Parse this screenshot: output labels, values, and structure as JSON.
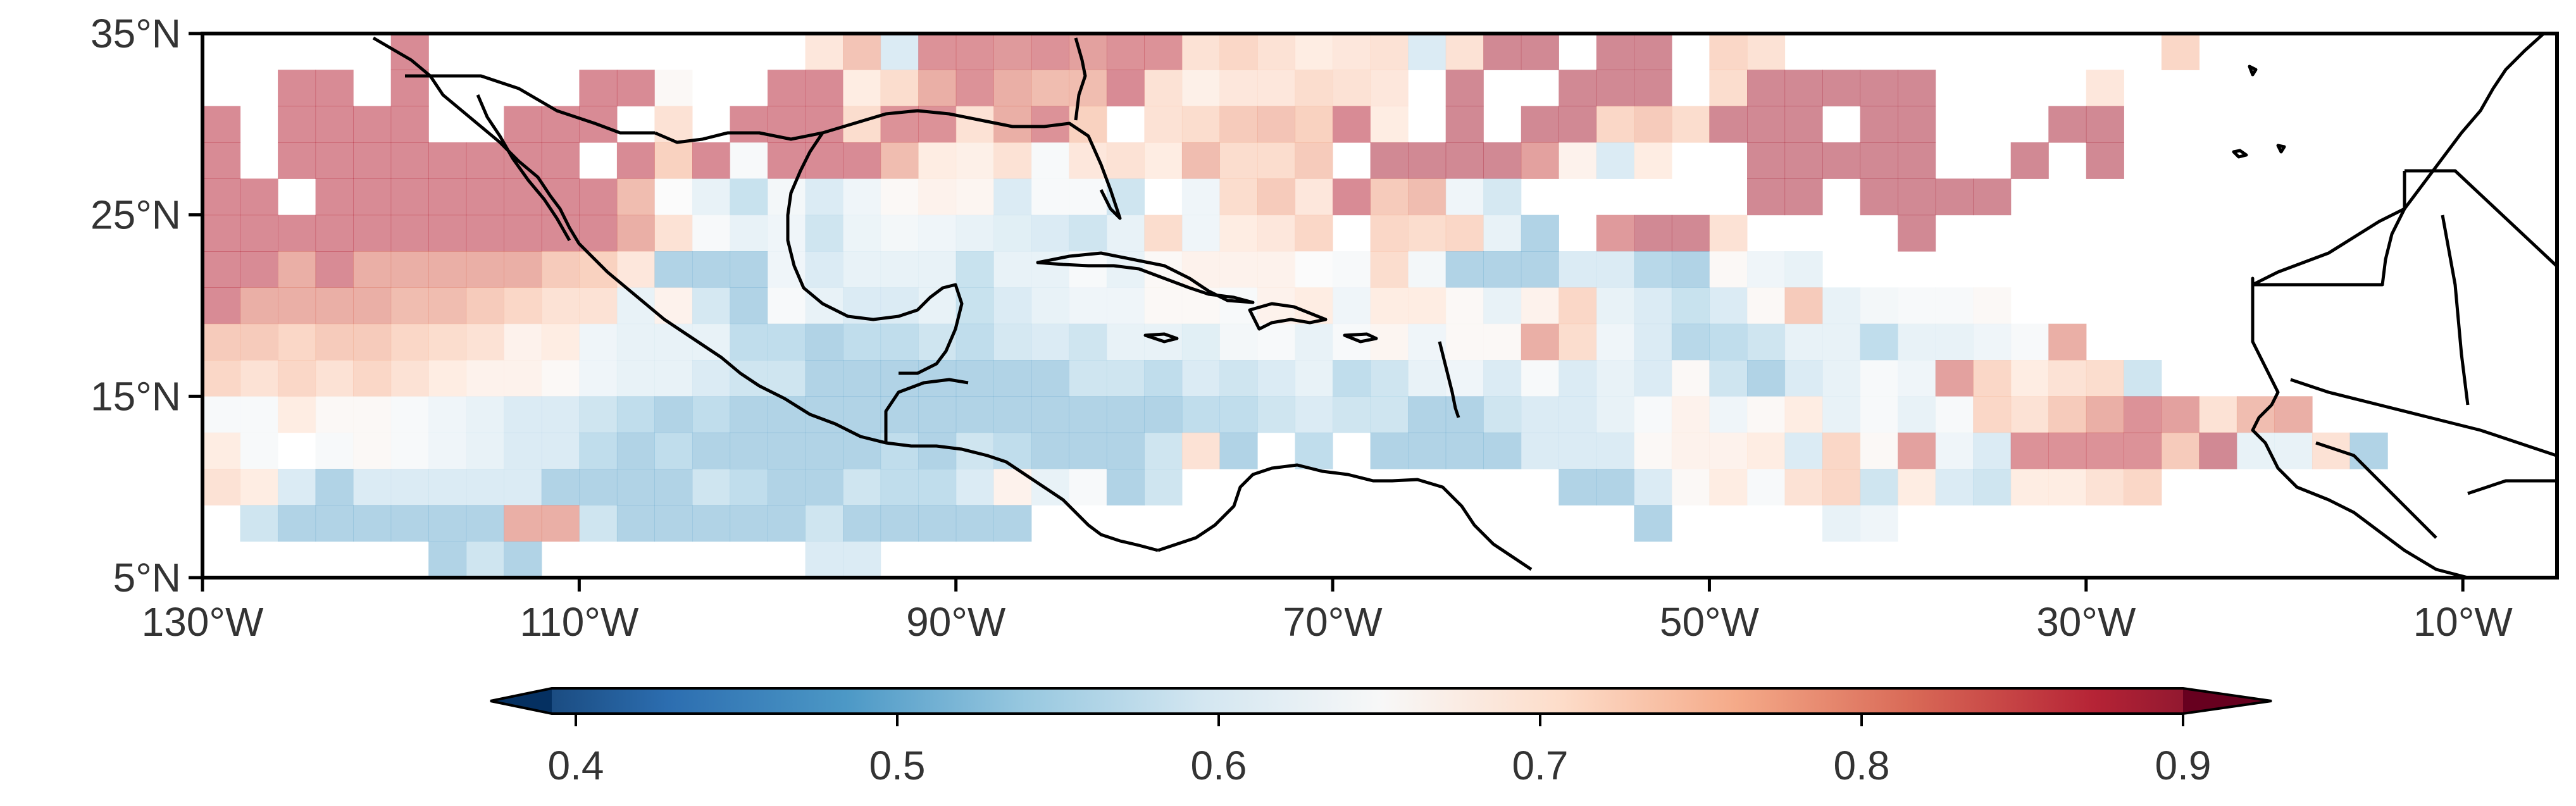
{
  "chart_data": {
    "type": "heatmap",
    "title": "",
    "map": {
      "projection": "PlateCarree",
      "lon_range": [
        -130,
        -5
      ],
      "lat_range": [
        5,
        35
      ],
      "cell_size_deg": 2,
      "x_tick_labels": [
        "130°W",
        "110°W",
        "90°W",
        "70°W",
        "50°W",
        "30°W",
        "10°W"
      ],
      "x_tick_values": [
        -130,
        -110,
        -90,
        -70,
        -50,
        -30,
        -10
      ],
      "y_tick_labels": [
        "35°N",
        "25°N",
        "15°N",
        "5°N"
      ],
      "y_tick_values": [
        35,
        25,
        15,
        5
      ],
      "features": [
        "coastlines",
        "country borders"
      ]
    },
    "colorbar": {
      "colormap": "RdBu_r",
      "vmin": 0.4,
      "vmax": 0.9,
      "extend": "both",
      "orientation": "horizontal",
      "alpha": 0.5,
      "tick_labels": [
        "0.4",
        "0.5",
        "0.6",
        "0.7",
        "0.8",
        "0.9"
      ],
      "tick_values": [
        0.4,
        0.5,
        0.6,
        0.7,
        0.8,
        0.9
      ]
    },
    "lons": [
      -129,
      -127,
      -125,
      -123,
      -121,
      -119,
      -117,
      -115,
      -113,
      -111,
      -109,
      -107,
      -105,
      -103,
      -101,
      -99,
      -97,
      -95,
      -93,
      -91,
      -89,
      -87,
      -85,
      -83,
      -81,
      -79,
      -77,
      -75,
      -73,
      -71,
      -69,
      -67,
      -65,
      -63,
      -61,
      -59,
      -57,
      -55,
      -53,
      -51,
      -49,
      -47,
      -45,
      -43,
      -41,
      -39,
      -37,
      -35,
      -33,
      -31,
      -29,
      -27,
      -25,
      -23,
      -21,
      -19,
      -17,
      -15,
      -13,
      -11,
      -9,
      -7
    ],
    "lats": [
      34,
      32,
      30,
      28,
      26,
      24,
      22,
      20,
      18,
      16,
      14,
      12,
      10,
      8,
      6
    ],
    "cells": [
      "-----------------------cc.c6edeeeeeeeecr6cc.cc---cd.cc.f.ccccc.cc.....f.......ccc.......",
      "------cccc-----.--cc...eccdd.ddeeffedfffeff.d.ff.d.d.dcccc.d.....d...................",
      "...",
      "...",
      "...",
      "...",
      "...",
      "...",
      "...",
      "...",
      "...",
      "...",
      "...",
      "...",
      "..."
    ],
    "grid_values": [
      [
        null,
        null,
        null,
        null,
        null,
        0.85,
        null,
        null,
        null,
        null,
        null,
        null,
        null,
        null,
        null,
        null,
        0.71,
        0.77,
        0.58,
        0.84,
        0.84,
        0.83,
        0.84,
        0.82,
        0.84,
        0.84,
        0.72,
        0.74,
        0.72,
        0.7,
        0.71,
        0.72,
        0.58,
        0.72,
        0.86,
        0.86,
        null,
        0.86,
        0.86,
        null,
        0.74,
        0.72,
        null,
        null,
        null,
        null,
        null,
        null,
        null,
        null,
        null,
        null,
        0.74,
        null,
        null,
        null,
        null,
        null,
        null,
        null,
        null,
        null
      ],
      [
        null,
        null,
        0.85,
        0.85,
        null,
        0.85,
        null,
        null,
        null,
        null,
        0.85,
        0.85,
        0.66,
        null,
        null,
        0.85,
        0.85,
        0.7,
        0.73,
        0.8,
        0.84,
        0.8,
        0.78,
        0.78,
        0.85,
        0.72,
        0.69,
        0.71,
        0.71,
        0.73,
        0.72,
        0.71,
        null,
        0.86,
        null,
        null,
        0.86,
        0.86,
        0.86,
        null,
        0.73,
        0.86,
        0.86,
        0.86,
        0.86,
        0.86,
        null,
        null,
        null,
        null,
        0.71,
        null,
        null,
        null,
        null,
        null,
        null,
        null,
        null,
        null,
        null,
        null
      ],
      [
        0.85,
        null,
        0.85,
        0.85,
        0.85,
        0.85,
        null,
        null,
        0.85,
        0.85,
        0.85,
        null,
        0.72,
        null,
        0.85,
        0.85,
        0.85,
        0.73,
        0.84,
        0.84,
        0.72,
        0.8,
        0.84,
        0.75,
        null,
        0.72,
        0.73,
        0.76,
        0.77,
        0.75,
        0.85,
        0.7,
        null,
        0.86,
        null,
        0.86,
        0.86,
        0.74,
        0.76,
        0.73,
        0.86,
        0.86,
        0.86,
        null,
        0.86,
        0.86,
        null,
        null,
        null,
        0.86,
        0.86,
        null,
        null,
        null,
        null,
        null,
        null,
        null,
        null,
        null,
        null,
        null
      ],
      [
        0.85,
        null,
        0.85,
        0.85,
        0.85,
        0.85,
        0.85,
        0.85,
        0.85,
        0.85,
        null,
        0.85,
        0.75,
        0.85,
        0.64,
        0.85,
        0.85,
        0.85,
        0.78,
        0.7,
        0.69,
        0.72,
        0.64,
        0.71,
        0.72,
        0.7,
        0.78,
        0.73,
        0.73,
        0.76,
        null,
        0.86,
        0.86,
        0.86,
        0.86,
        0.82,
        0.68,
        0.58,
        0.7,
        null,
        null,
        0.86,
        0.86,
        0.86,
        0.86,
        0.86,
        null,
        null,
        0.86,
        null,
        0.86,
        null,
        null,
        null,
        null,
        null,
        null,
        null,
        null,
        null,
        null,
        null
      ],
      [
        0.85,
        0.85,
        null,
        0.85,
        0.85,
        0.85,
        0.85,
        0.85,
        0.85,
        0.85,
        0.85,
        0.78,
        0.65,
        0.6,
        0.55,
        0.63,
        0.58,
        0.62,
        0.66,
        0.68,
        0.67,
        0.58,
        0.64,
        0.64,
        0.56,
        null,
        0.62,
        0.73,
        0.76,
        0.71,
        0.85,
        0.76,
        0.78,
        0.62,
        0.57,
        null,
        null,
        null,
        null,
        null,
        null,
        0.86,
        0.86,
        null,
        0.86,
        0.86,
        0.86,
        0.86,
        null,
        null,
        null,
        null,
        null,
        null,
        null,
        null,
        null,
        null,
        null,
        null,
        null,
        null
      ],
      [
        0.85,
        0.85,
        0.85,
        0.85,
        0.85,
        0.85,
        0.85,
        0.85,
        0.85,
        0.85,
        0.85,
        0.8,
        0.72,
        0.64,
        0.6,
        0.62,
        0.56,
        0.61,
        0.63,
        0.62,
        0.6,
        0.59,
        0.58,
        0.56,
        0.6,
        0.73,
        0.62,
        0.7,
        0.71,
        0.74,
        null,
        0.74,
        0.73,
        0.74,
        0.6,
        0.52,
        null,
        0.83,
        0.86,
        0.86,
        0.72,
        null,
        null,
        null,
        null,
        0.86,
        null,
        null,
        null,
        null,
        null,
        null,
        null,
        null,
        null,
        null,
        null,
        null,
        null,
        null,
        null,
        null
      ],
      [
        0.85,
        0.85,
        0.8,
        0.85,
        0.8,
        0.8,
        0.8,
        0.8,
        0.8,
        0.76,
        0.75,
        0.71,
        0.52,
        0.52,
        0.52,
        0.62,
        0.58,
        0.6,
        0.6,
        0.6,
        0.55,
        0.6,
        0.6,
        0.64,
        0.6,
        0.66,
        0.68,
        0.68,
        0.68,
        0.65,
        0.64,
        0.73,
        0.63,
        0.52,
        0.52,
        0.52,
        0.58,
        0.58,
        0.53,
        0.52,
        0.66,
        0.62,
        0.6,
        null,
        null,
        null,
        null,
        null,
        null,
        null,
        null,
        null,
        null,
        null,
        null,
        null,
        null,
        null,
        null,
        null,
        null,
        null
      ],
      [
        0.85,
        0.8,
        0.8,
        0.8,
        0.8,
        0.78,
        0.78,
        0.76,
        0.74,
        0.72,
        0.72,
        0.6,
        0.68,
        0.57,
        0.52,
        0.64,
        0.6,
        0.58,
        0.58,
        0.6,
        0.55,
        0.58,
        0.6,
        0.62,
        0.62,
        0.66,
        0.66,
        0.64,
        0.68,
        0.7,
        0.62,
        0.7,
        0.7,
        0.66,
        0.6,
        0.68,
        0.74,
        0.6,
        0.58,
        0.55,
        0.58,
        0.66,
        0.76,
        0.6,
        0.63,
        0.64,
        0.64,
        0.66,
        null,
        null,
        null,
        null,
        null,
        null,
        null,
        null,
        null,
        null,
        null,
        null,
        null,
        null
      ],
      [
        0.76,
        0.76,
        0.74,
        0.76,
        0.76,
        0.74,
        0.73,
        0.72,
        0.68,
        0.7,
        0.62,
        0.6,
        0.6,
        0.6,
        0.54,
        0.54,
        0.52,
        0.54,
        0.54,
        0.56,
        0.54,
        0.57,
        0.58,
        0.56,
        0.6,
        0.6,
        0.59,
        0.63,
        0.64,
        0.6,
        0.64,
        0.67,
        0.62,
        0.66,
        0.66,
        0.8,
        0.73,
        0.62,
        0.58,
        0.53,
        0.54,
        0.56,
        0.6,
        0.6,
        0.54,
        0.6,
        0.6,
        0.62,
        0.64,
        0.8,
        null,
        null,
        null,
        null,
        null,
        null,
        null,
        null,
        null,
        null,
        null,
        null
      ],
      [
        0.74,
        0.72,
        0.74,
        0.72,
        0.74,
        0.72,
        0.7,
        0.68,
        0.68,
        0.66,
        0.62,
        0.6,
        0.6,
        0.58,
        0.56,
        0.56,
        0.52,
        0.52,
        0.52,
        0.52,
        0.52,
        0.52,
        0.52,
        0.56,
        0.56,
        0.54,
        0.58,
        0.56,
        0.58,
        0.6,
        0.54,
        0.56,
        0.6,
        0.62,
        0.58,
        0.64,
        0.58,
        0.6,
        0.58,
        0.66,
        0.56,
        0.52,
        0.58,
        0.6,
        0.64,
        0.62,
        0.82,
        0.74,
        0.7,
        0.72,
        0.73,
        0.56,
        null,
        null,
        null,
        null,
        null,
        null,
        null,
        null,
        null,
        null
      ],
      [
        0.64,
        0.64,
        0.7,
        0.66,
        0.66,
        0.64,
        0.62,
        0.6,
        0.58,
        0.58,
        0.56,
        0.54,
        0.52,
        0.54,
        0.52,
        0.52,
        0.52,
        0.52,
        0.52,
        0.52,
        0.52,
        0.52,
        0.52,
        0.52,
        0.52,
        0.52,
        0.54,
        0.54,
        0.56,
        0.58,
        0.56,
        0.56,
        0.52,
        0.52,
        0.56,
        0.58,
        0.58,
        0.6,
        0.64,
        0.68,
        0.62,
        0.66,
        0.7,
        0.6,
        0.64,
        0.6,
        0.64,
        0.74,
        0.72,
        0.76,
        0.8,
        0.84,
        0.82,
        0.72,
        0.78,
        0.8,
        null,
        null,
        null,
        null,
        null,
        null
      ],
      [
        0.7,
        0.64,
        null,
        0.64,
        0.66,
        0.64,
        0.62,
        0.6,
        0.58,
        0.58,
        0.54,
        0.52,
        0.54,
        0.52,
        0.52,
        0.52,
        0.52,
        0.52,
        0.54,
        0.52,
        0.56,
        0.54,
        0.52,
        0.52,
        0.52,
        0.56,
        0.72,
        0.52,
        null,
        0.54,
        null,
        0.52,
        0.52,
        0.52,
        0.52,
        0.58,
        0.58,
        0.58,
        0.66,
        0.68,
        0.68,
        0.7,
        0.58,
        0.74,
        0.66,
        0.82,
        0.62,
        0.58,
        0.84,
        0.84,
        0.84,
        0.84,
        0.76,
        0.86,
        0.6,
        0.6,
        0.72,
        0.52,
        null,
        null,
        null,
        null
      ],
      [
        0.72,
        0.7,
        0.58,
        0.52,
        0.58,
        0.58,
        0.58,
        0.58,
        0.58,
        0.52,
        0.52,
        0.52,
        0.52,
        0.56,
        0.54,
        0.52,
        0.52,
        0.56,
        0.54,
        0.54,
        0.58,
        0.68,
        0.6,
        0.64,
        0.52,
        0.56,
        null,
        null,
        null,
        null,
        null,
        null,
        null,
        null,
        null,
        null,
        0.52,
        0.52,
        0.58,
        0.66,
        0.7,
        0.64,
        0.72,
        0.74,
        0.56,
        0.7,
        0.58,
        0.56,
        0.7,
        0.7,
        0.72,
        0.74,
        null,
        null,
        null,
        null,
        null,
        null,
        null,
        null,
        null,
        null
      ],
      [
        null,
        0.56,
        0.52,
        0.52,
        0.52,
        0.52,
        0.52,
        0.52,
        0.8,
        0.8,
        0.56,
        0.52,
        0.52,
        0.52,
        0.52,
        0.52,
        0.56,
        0.52,
        0.52,
        0.52,
        0.52,
        0.52,
        null,
        null,
        null,
        null,
        null,
        null,
        null,
        null,
        null,
        null,
        null,
        null,
        null,
        null,
        null,
        null,
        0.52,
        null,
        null,
        null,
        null,
        0.6,
        0.62,
        null,
        null,
        null,
        null,
        null,
        null,
        null,
        null,
        null,
        null,
        null,
        null,
        null,
        null,
        null,
        null,
        null
      ],
      [
        null,
        null,
        null,
        null,
        null,
        null,
        0.52,
        0.56,
        0.52,
        null,
        null,
        null,
        null,
        null,
        null,
        null,
        0.58,
        0.58,
        null,
        null,
        null,
        null,
        null,
        null,
        null,
        null,
        null,
        null,
        null,
        null,
        null,
        null,
        null,
        null,
        null,
        null,
        null,
        null,
        null,
        null,
        null,
        null,
        null,
        null,
        null,
        null,
        null,
        null,
        null,
        null,
        null,
        null,
        null,
        null,
        null,
        null,
        null,
        null,
        null,
        null,
        null,
        null
      ]
    ]
  },
  "axes_text": {
    "x_ticks": [
      "130°W",
      "110°W",
      "90°W",
      "70°W",
      "50°W",
      "30°W",
      "10°W"
    ],
    "y_ticks": [
      "35°N",
      "25°N",
      "15°N",
      "5°N"
    ],
    "colorbar_ticks": [
      "0.4",
      "0.5",
      "0.6",
      "0.7",
      "0.8",
      "0.9"
    ]
  }
}
